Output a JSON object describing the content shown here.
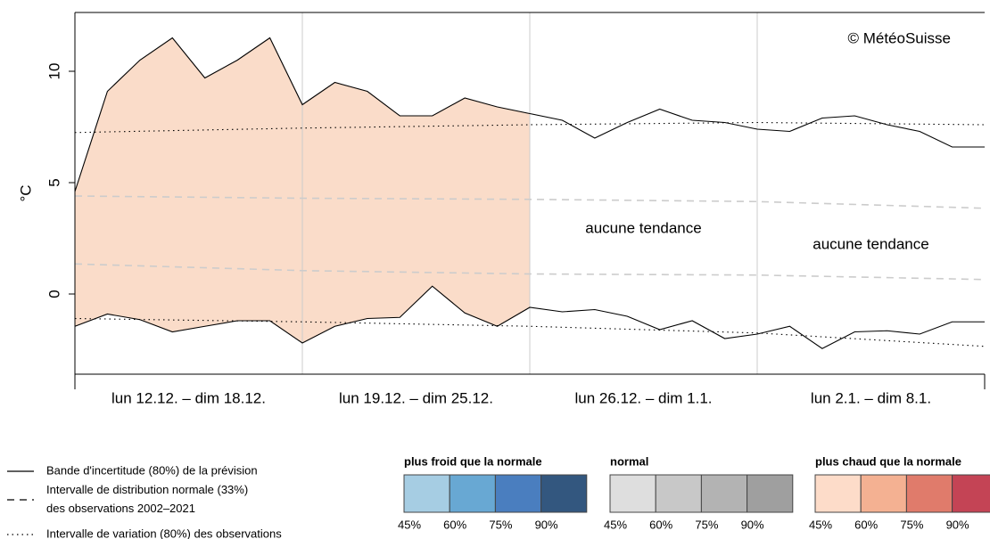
{
  "chart_data": {
    "type": "line",
    "ylabel": "°C",
    "annotations": [
      {
        "text": "© MétéoSuisse"
      },
      {
        "text": "aucune tendance",
        "week": 2
      },
      {
        "text": "aucune tendance",
        "week": 3
      }
    ],
    "weeks": [
      "lun 12.12. – dim 18.12.",
      "lun 19.12. – dim 25.12.",
      "lun 26.12. – dim 1.1.",
      "lun 2.1. – dim 8.1."
    ],
    "xlim": [
      0,
      28
    ],
    "xticks": [
      0,
      7,
      14,
      21,
      28
    ],
    "ylim": [
      -3.6,
      12.64
    ],
    "yticks": [
      0,
      5,
      10
    ],
    "shade": {
      "color": "#fadcc9",
      "x_range": [
        0,
        14
      ]
    },
    "series": [
      {
        "style": "solid",
        "color": "#000000",
        "x": [
          0,
          1,
          2,
          3,
          4,
          5,
          6,
          7,
          8,
          9,
          10,
          11,
          12,
          13,
          14,
          15,
          16,
          17,
          18,
          19,
          20,
          21,
          22,
          23,
          24,
          25,
          26,
          27,
          28
        ],
        "values": [
          4.6,
          9.1,
          10.5,
          11.5,
          9.7,
          10.5,
          11.5,
          8.5,
          9.5,
          9.1,
          8.0,
          8.0,
          8.8,
          8.4,
          8.1,
          7.8,
          7.0,
          7.7,
          8.3,
          7.8,
          7.7,
          7.4,
          7.3,
          7.9,
          8.0,
          7.6,
          7.3,
          6.6,
          6.6
        ]
      },
      {
        "style": "solid",
        "color": "#000000",
        "x": [
          0,
          1,
          2,
          3,
          4,
          5,
          6,
          7,
          8,
          9,
          10,
          11,
          12,
          13,
          14,
          15,
          16,
          17,
          18,
          19,
          20,
          21,
          22,
          23,
          24,
          25,
          26,
          27,
          28
        ],
        "values": [
          -1.45,
          -0.9,
          -1.15,
          -1.7,
          -1.45,
          -1.2,
          -1.2,
          -2.2,
          -1.45,
          -1.1,
          -1.05,
          0.35,
          -0.85,
          -1.45,
          -0.6,
          -0.8,
          -0.7,
          -1.0,
          -1.6,
          -1.2,
          -2.0,
          -1.8,
          -1.45,
          -2.45,
          -1.7,
          -1.65,
          -1.8,
          -1.25,
          -1.25
        ]
      },
      {
        "style": "dashed",
        "color": "#cccccc",
        "x": [
          0,
          7,
          14,
          21,
          28
        ],
        "values": [
          4.4,
          4.3,
          4.25,
          4.15,
          3.85
        ]
      },
      {
        "style": "dashed",
        "color": "#cccccc",
        "x": [
          0,
          7,
          14,
          21,
          28
        ],
        "values": [
          1.35,
          1.05,
          0.9,
          0.85,
          0.65
        ]
      },
      {
        "style": "dotted",
        "color": "#000000",
        "x": [
          0,
          7,
          14,
          21,
          28
        ],
        "values": [
          7.25,
          7.45,
          7.6,
          7.7,
          7.6
        ]
      },
      {
        "style": "dotted",
        "color": "#000000",
        "x": [
          0,
          7,
          14,
          21,
          28
        ],
        "values": [
          -1.1,
          -1.25,
          -1.45,
          -1.75,
          -2.35
        ]
      }
    ],
    "legend": [
      {
        "style": "solid",
        "lines": [
          "Bande d'incertitude (80%) de la prévision"
        ]
      },
      {
        "style": "dashed",
        "lines": [
          "Intervalle de distribution normale (33%)",
          "des observations 2002–2021"
        ]
      },
      {
        "style": "dotted",
        "lines": [
          "Intervalle de variation (80%) des observations"
        ]
      }
    ],
    "scale_labels": [
      {
        "value": 45,
        "label": "45%"
      },
      {
        "value": 60,
        "label": "60%"
      },
      {
        "value": 75,
        "label": "75%"
      },
      {
        "value": 90,
        "label": "90%"
      }
    ],
    "scale_groups": [
      {
        "title": "plus froid que la normale",
        "colors": [
          "#a6cde3",
          "#68a8d3",
          "#4a7ebf",
          "#33577f"
        ]
      },
      {
        "title": "normal",
        "colors": [
          "#dedede",
          "#c8c8c8",
          "#b3b3b3",
          "#9f9f9f"
        ]
      },
      {
        "title": "plus chaud que la normale",
        "colors": [
          "#fddcc9",
          "#f4b192",
          "#e07b6b",
          "#c44455"
        ]
      }
    ]
  }
}
